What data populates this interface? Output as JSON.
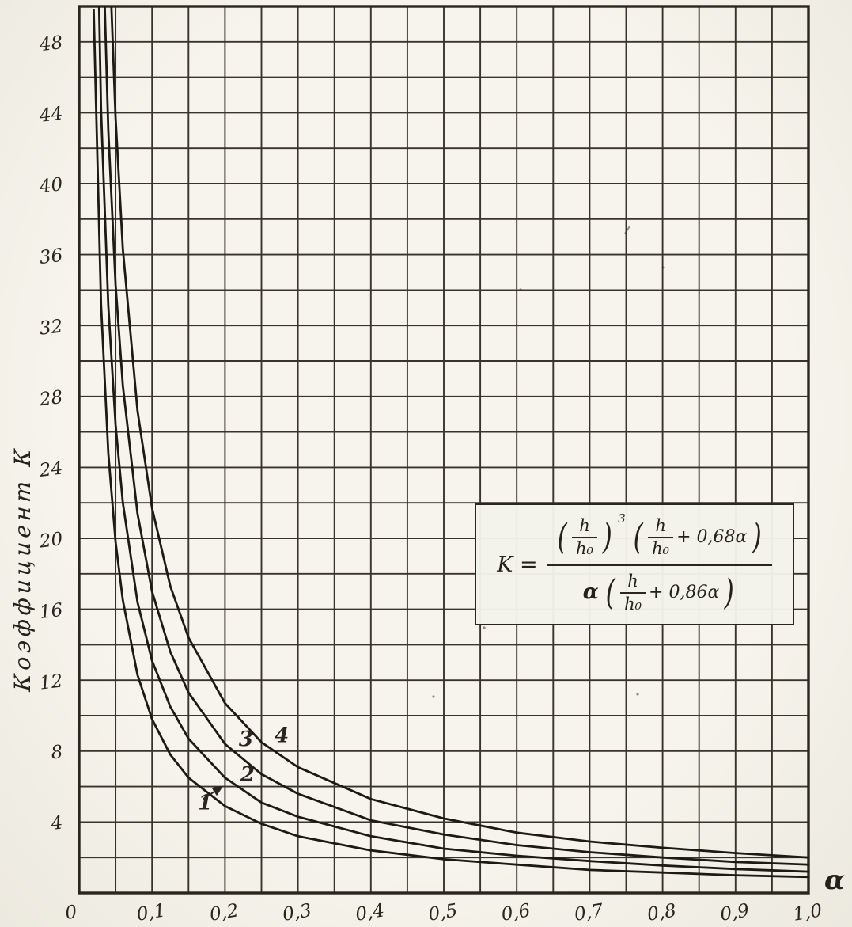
{
  "chart_data": {
    "type": "line",
    "title": "",
    "xlabel": "α",
    "ylabel": "Коэффициент К",
    "xlim": [
      0,
      1.0
    ],
    "ylim": [
      0,
      50
    ],
    "grid": true,
    "x_gridstep": 0.05,
    "y_gridstep": 2,
    "legend_position": "none",
    "x_ticks": [
      {
        "v": 0,
        "label": "0"
      },
      {
        "v": 0.1,
        "label": "0,1"
      },
      {
        "v": 0.2,
        "label": "0,2"
      },
      {
        "v": 0.3,
        "label": "0,3"
      },
      {
        "v": 0.4,
        "label": "0,4"
      },
      {
        "v": 0.5,
        "label": "0,5"
      },
      {
        "v": 0.6,
        "label": "0,6"
      },
      {
        "v": 0.7,
        "label": "0,7"
      },
      {
        "v": 0.8,
        "label": "0,8"
      },
      {
        "v": 0.9,
        "label": "0,9"
      },
      {
        "v": 1.0,
        "label": "1,0"
      }
    ],
    "y_ticks": [
      {
        "v": 4,
        "label": "4"
      },
      {
        "v": 8,
        "label": "8"
      },
      {
        "v": 12,
        "label": "12"
      },
      {
        "v": 16,
        "label": "16"
      },
      {
        "v": 20,
        "label": "20"
      },
      {
        "v": 24,
        "label": "24"
      },
      {
        "v": 28,
        "label": "28"
      },
      {
        "v": 32,
        "label": "32"
      },
      {
        "v": 36,
        "label": "36"
      },
      {
        "v": 40,
        "label": "40"
      },
      {
        "v": 44,
        "label": "44"
      },
      {
        "v": 48,
        "label": "48"
      }
    ],
    "x_shared": [
      0.02,
      0.03,
      0.04,
      0.05,
      0.06,
      0.08,
      0.1,
      0.125,
      0.15,
      0.2,
      0.25,
      0.3,
      0.4,
      0.5,
      0.6,
      0.7,
      0.8,
      0.9,
      1.0
    ],
    "series": [
      {
        "name": "1",
        "y": [
          49.8,
          33.2,
          24.8,
          19.8,
          16.5,
          12.3,
          9.8,
          7.8,
          6.5,
          4.9,
          3.9,
          3.2,
          2.4,
          1.9,
          1.6,
          1.3,
          1.15,
          1.0,
          0.9
        ]
      },
      {
        "name": "2",
        "y": [
          66.3,
          44.2,
          33.1,
          26.4,
          22.0,
          16.4,
          13.1,
          10.5,
          8.7,
          6.5,
          5.1,
          4.3,
          3.2,
          2.5,
          2.1,
          1.8,
          1.55,
          1.35,
          1.2
        ]
      },
      {
        "name": "3",
        "y": [
          86.1,
          57.3,
          43.0,
          34.3,
          28.6,
          21.4,
          17.0,
          13.6,
          11.3,
          8.4,
          6.7,
          5.6,
          4.1,
          3.3,
          2.7,
          2.3,
          2.0,
          1.75,
          1.6
        ]
      },
      {
        "name": "4",
        "y": [
          109.6,
          72.9,
          54.6,
          43.7,
          36.3,
          27.2,
          21.7,
          17.3,
          14.4,
          10.7,
          8.5,
          7.1,
          5.3,
          4.2,
          3.4,
          2.9,
          2.55,
          2.25,
          2.0
        ]
      }
    ],
    "curve_labels": [
      {
        "text": "1",
        "alpha": 0.163,
        "k": 4.7
      },
      {
        "text": "2",
        "alpha": 0.221,
        "k": 6.3
      },
      {
        "text": "3",
        "alpha": 0.219,
        "k": 8.3
      },
      {
        "text": "4",
        "alpha": 0.268,
        "k": 8.5
      }
    ],
    "label_arrow": {
      "from": {
        "alpha": 0.17,
        "k": 5.3
      },
      "to": {
        "alpha": 0.196,
        "k": 6.0
      }
    }
  },
  "formula": {
    "lhs": "K =",
    "open": "(",
    "close": ")",
    "h": "h",
    "h0": "h₀",
    "exponent": "3",
    "num_plus": "+ 0,68α",
    "den_alpha": "α",
    "den_plus": "+ 0,86α"
  }
}
